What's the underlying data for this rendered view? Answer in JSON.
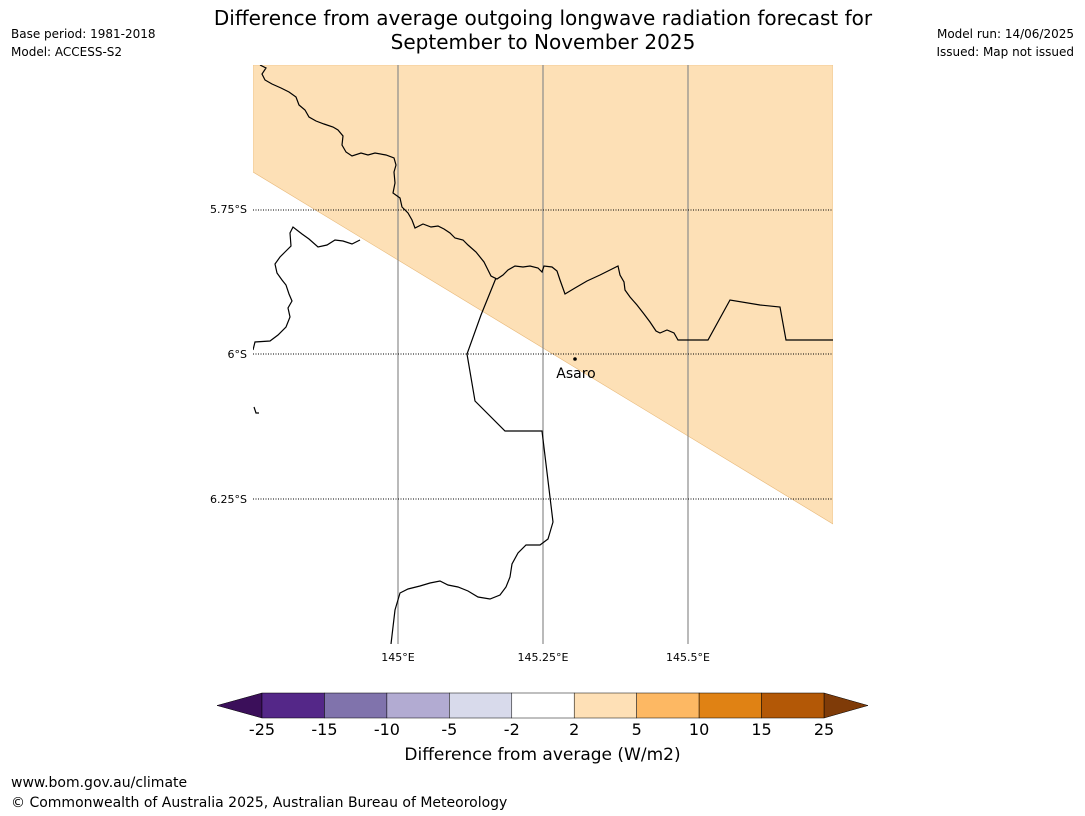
{
  "header": {
    "title_line1": "Difference from average outgoing longwave radiation forecast for",
    "title_line2": "September to November 2025",
    "base_period": "Base period: 1981-2018",
    "model": "Model: ACCESS-S2",
    "model_run": "Model run: 14/06/2025",
    "issued": "Issued: Map not issued"
  },
  "map": {
    "lon_labels": [
      "145°E",
      "145.25°E",
      "145.5°E"
    ],
    "lat_labels": [
      "5.75°S",
      "6°S",
      "6.25°S"
    ],
    "place": {
      "name": "Asaro"
    },
    "shaded_category": "2 to 5",
    "shaded_color": "#fde0b6"
  },
  "colorbar": {
    "label": "Difference from average (W/m2)",
    "ticks": [
      "-25",
      "-15",
      "-10",
      "-5",
      "-2",
      "2",
      "5",
      "10",
      "15",
      "25"
    ],
    "below_color": "#3b0f5a",
    "above_color": "#7f3b08",
    "colors": [
      "#542788",
      "#8073ac",
      "#b2abd2",
      "#d8daeb",
      "#ffffff",
      "#fee0b6",
      "#fdb863",
      "#e08214",
      "#b35806"
    ]
  },
  "footer": {
    "url": "www.bom.gov.au/climate",
    "copyright": "© Commonwealth of Australia 2025, Australian Bureau of Meteorology"
  }
}
